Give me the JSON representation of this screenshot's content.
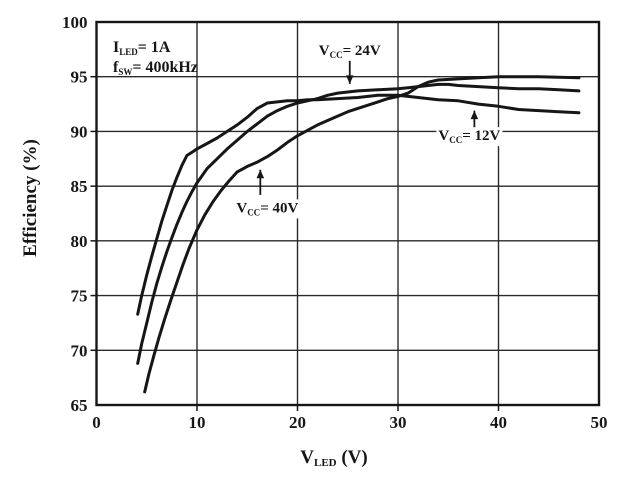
{
  "figure": {
    "background": "#ffffff",
    "colors": {
      "line": "#161616",
      "grid": "#2a2a2a",
      "border": "#161616",
      "text": "#161616"
    }
  },
  "chart_data": {
    "type": "line",
    "title": "",
    "xlabel": "V_LED (V)",
    "xlabel_parts": {
      "pre": "V",
      "sub": "LED",
      "post": " (V)"
    },
    "ylabel": "Efficiency (%)",
    "xlim": [
      0,
      50
    ],
    "ylim": [
      65,
      100
    ],
    "x_ticks": [
      0,
      10,
      20,
      30,
      40,
      50
    ],
    "y_ticks": [
      65,
      70,
      75,
      80,
      85,
      90,
      95,
      100
    ],
    "grid": true,
    "legend_position": "none",
    "conditions": [
      {
        "text": "I_LED = 1A",
        "pre": "I",
        "sub": "LED",
        "post": "= 1A"
      },
      {
        "text": "f_SW = 400kHz",
        "pre": "f",
        "sub": "SW",
        "post": "= 400kHz"
      }
    ],
    "series": [
      {
        "name": "VCC = 12V",
        "label_parts": {
          "pre": "V",
          "sub": "CC",
          "post": "= 12V"
        },
        "points": [
          [
            4.1,
            73.3
          ],
          [
            4.5,
            75.0
          ],
          [
            5,
            76.9
          ],
          [
            5.5,
            78.6
          ],
          [
            6,
            80.2
          ],
          [
            6.5,
            81.8
          ],
          [
            7,
            83.2
          ],
          [
            7.5,
            84.6
          ],
          [
            8,
            85.8
          ],
          [
            8.5,
            86.9
          ],
          [
            9,
            87.8
          ],
          [
            9.5,
            88.1
          ],
          [
            10,
            88.4
          ],
          [
            11,
            88.9
          ],
          [
            12,
            89.4
          ],
          [
            13,
            90.0
          ],
          [
            14,
            90.6
          ],
          [
            15,
            91.3
          ],
          [
            16,
            92.1
          ],
          [
            17,
            92.6
          ],
          [
            18,
            92.7
          ],
          [
            19,
            92.8
          ],
          [
            20,
            92.8
          ],
          [
            21,
            92.9
          ],
          [
            22,
            92.9
          ],
          [
            24,
            93.0
          ],
          [
            26,
            93.1
          ],
          [
            28,
            93.3
          ],
          [
            30,
            93.3
          ],
          [
            32,
            93.1
          ],
          [
            34,
            92.9
          ],
          [
            36,
            92.8
          ],
          [
            38,
            92.5
          ],
          [
            40,
            92.3
          ],
          [
            42,
            92.0
          ],
          [
            44,
            91.9
          ],
          [
            46,
            91.8
          ],
          [
            48,
            91.7
          ]
        ]
      },
      {
        "name": "VCC = 24V",
        "label_parts": {
          "pre": "V",
          "sub": "CC",
          "post": "= 24V"
        },
        "points": [
          [
            4.1,
            68.8
          ],
          [
            4.5,
            70.6
          ],
          [
            5,
            72.5
          ],
          [
            5.5,
            74.4
          ],
          [
            6,
            76.1
          ],
          [
            6.5,
            77.6
          ],
          [
            7,
            79.0
          ],
          [
            7.5,
            80.3
          ],
          [
            8,
            81.5
          ],
          [
            8.5,
            82.6
          ],
          [
            9,
            83.6
          ],
          [
            9.5,
            84.5
          ],
          [
            10,
            85.3
          ],
          [
            11,
            86.6
          ],
          [
            12,
            87.5
          ],
          [
            13,
            88.4
          ],
          [
            14,
            89.2
          ],
          [
            15,
            90.0
          ],
          [
            16,
            90.7
          ],
          [
            17,
            91.4
          ],
          [
            18,
            91.9
          ],
          [
            19,
            92.3
          ],
          [
            20,
            92.6
          ],
          [
            21,
            92.8
          ],
          [
            22,
            93.0
          ],
          [
            23,
            93.3
          ],
          [
            24,
            93.5
          ],
          [
            25,
            93.6
          ],
          [
            26,
            93.7
          ],
          [
            28,
            93.8
          ],
          [
            30,
            93.9
          ],
          [
            31,
            94.0
          ],
          [
            32,
            94.1
          ],
          [
            33,
            94.2
          ],
          [
            34,
            94.3
          ],
          [
            35,
            94.3
          ],
          [
            36,
            94.2
          ],
          [
            38,
            94.1
          ],
          [
            40,
            94.0
          ],
          [
            42,
            93.9
          ],
          [
            44,
            93.9
          ],
          [
            46,
            93.8
          ],
          [
            48,
            93.7
          ]
        ]
      },
      {
        "name": "VCC = 40V",
        "label_parts": {
          "pre": "V",
          "sub": "CC",
          "post": "= 40V"
        },
        "points": [
          [
            4.8,
            66.2
          ],
          [
            5.2,
            67.8
          ],
          [
            5.7,
            69.5
          ],
          [
            6.2,
            71.1
          ],
          [
            6.8,
            72.9
          ],
          [
            7.4,
            74.6
          ],
          [
            8,
            76.2
          ],
          [
            8.6,
            77.8
          ],
          [
            9.2,
            79.3
          ],
          [
            10,
            81.0
          ],
          [
            10.8,
            82.4
          ],
          [
            11.6,
            83.6
          ],
          [
            12.4,
            84.6
          ],
          [
            13.2,
            85.5
          ],
          [
            14,
            86.3
          ],
          [
            15,
            86.8
          ],
          [
            16,
            87.2
          ],
          [
            17,
            87.7
          ],
          [
            18,
            88.3
          ],
          [
            19,
            89.0
          ],
          [
            20,
            89.6
          ],
          [
            21,
            90.1
          ],
          [
            22,
            90.6
          ],
          [
            23,
            91.0
          ],
          [
            24,
            91.4
          ],
          [
            25,
            91.8
          ],
          [
            26,
            92.1
          ],
          [
            27,
            92.4
          ],
          [
            28,
            92.7
          ],
          [
            29,
            93.0
          ],
          [
            30,
            93.2
          ],
          [
            31,
            93.5
          ],
          [
            32,
            94.1
          ],
          [
            33,
            94.5
          ],
          [
            34,
            94.7
          ],
          [
            36,
            94.8
          ],
          [
            38,
            94.9
          ],
          [
            40,
            95.0
          ],
          [
            44,
            95.0
          ],
          [
            48,
            94.9
          ]
        ]
      }
    ],
    "annotations": [
      {
        "series": "VCC = 24V",
        "pre": "V",
        "sub": "CC",
        "post": "= 24V",
        "label_x": 25.2,
        "label_y": 97.0,
        "arrow_x": 25.2,
        "arrow_from_y": 96.6,
        "arrow_to_y": 94.35
      },
      {
        "series": "VCC = 12V",
        "pre": "V",
        "sub": "CC",
        "post": "= 12V",
        "label_x": 37.1,
        "label_y": 89.2,
        "arrow_x": 37.6,
        "arrow_from_y": 90.0,
        "arrow_to_y": 91.9
      },
      {
        "series": "VCC = 40V",
        "pre": "V",
        "sub": "CC",
        "post": "= 40V",
        "label_x": 17.0,
        "label_y": 82.6,
        "arrow_x": 16.3,
        "arrow_from_y": 84.2,
        "arrow_to_y": 86.5
      }
    ]
  }
}
